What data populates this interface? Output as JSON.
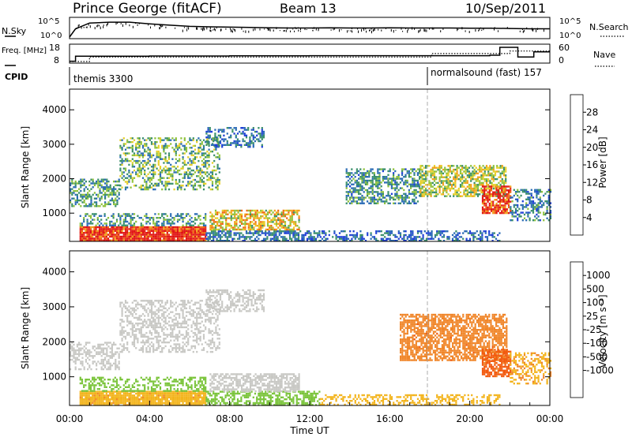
{
  "header": {
    "station": "Prince George (fitACF)",
    "beam": "Beam 13",
    "date": "10/Sep/2011"
  },
  "colors": {
    "power": [
      "#1f3fd6",
      "#2a6bb5",
      "#3a8f6a",
      "#8fc23c",
      "#e6d02a",
      "#f2a019",
      "#f06a12",
      "#e8301a",
      "#e01414"
    ],
    "velocity": [
      "#e01414",
      "#f25a0f",
      "#f0862a",
      "#f3b41c",
      "#c8c8c4",
      "#c8c8c4",
      "#7ac43a",
      "#2f8e5a",
      "#2852b0",
      "#1d2fc6"
    ],
    "ground_scatter": "#c8c8c4"
  },
  "chart_data": [
    {
      "type": "line",
      "panel": "noise",
      "ylabel_left": "N.Sky",
      "ylabel_right": "N.Search",
      "yticks": [
        "10^5",
        "10^0"
      ],
      "x": [
        0,
        0.3,
        0.5,
        1,
        2,
        3,
        4,
        5,
        6,
        7,
        8,
        9,
        10,
        11,
        12,
        13,
        14,
        15,
        16,
        17,
        18,
        19,
        20,
        21,
        22,
        23,
        24
      ],
      "series": [
        {
          "name": "N.Sky",
          "values": [
            0.0,
            0.5,
            0.6,
            0.85,
            0.9,
            0.9,
            0.8,
            0.72,
            0.65,
            0.62,
            0.6,
            0.58,
            0.56,
            0.55,
            0.55,
            0.56,
            0.55,
            0.55,
            0.56,
            0.55,
            0.55,
            0.55,
            0.54,
            0.54,
            0.52,
            0.5,
            0.5
          ]
        }
      ]
    },
    {
      "type": "line",
      "panel": "frequency",
      "ylabel_left": "Freq. [MHz]",
      "ylabel_right": "Nave",
      "yticks_left": [
        "18",
        "8"
      ],
      "yticks_right": [
        "60",
        "0"
      ],
      "series": [
        {
          "name": "Freq.",
          "x": [
            0,
            0.3,
            1,
            4,
            8,
            12,
            16,
            18,
            20,
            21,
            21.5,
            22.2,
            22.4,
            23,
            23.2,
            24
          ],
          "values": [
            8.2,
            11.5,
            11.6,
            11.7,
            11.8,
            11.9,
            11.9,
            11.9,
            11.9,
            12.2,
            17.5,
            17.5,
            11.0,
            11.0,
            14.5,
            14.5
          ]
        },
        {
          "name": "Nave",
          "x": [
            0,
            1,
            17.9,
            18.1,
            21.5,
            22,
            24
          ],
          "values": [
            0,
            18,
            18,
            32,
            32,
            42,
            42
          ]
        }
      ]
    },
    {
      "type": "table",
      "panel": "cpid",
      "label": "CPID",
      "segments": [
        {
          "label": "themis 3300",
          "start": 0
        },
        {
          "label": "normalsound (fast) 157",
          "start": 18.0
        }
      ]
    },
    {
      "type": "heatmap",
      "panel": "power",
      "ylabel": "Slant Range [km]",
      "colorbar_label": "Power [dB]",
      "colorbar_ticks": [
        4,
        8,
        12,
        16,
        20,
        24,
        28
      ],
      "vmin": 0,
      "vmax": 32,
      "xlim": [
        0,
        24
      ],
      "ylim": [
        180,
        4600
      ],
      "yticks": [
        1000,
        2000,
        3000,
        4000
      ],
      "regions": [
        {
          "t": [
            0.5,
            6.8
          ],
          "r": [
            200,
            620
          ],
          "v": 29,
          "density": 0.95
        },
        {
          "t": [
            0.5,
            6.8
          ],
          "r": [
            620,
            1000
          ],
          "v": 9,
          "density": 0.45
        },
        {
          "t": [
            6.8,
            12.5
          ],
          "r": [
            200,
            500
          ],
          "v": 6,
          "density": 0.6
        },
        {
          "t": [
            12.5,
            21.5
          ],
          "r": [
            200,
            500
          ],
          "v": 5,
          "density": 0.45
        },
        {
          "t": [
            7.0,
            11.5
          ],
          "r": [
            500,
            1100
          ],
          "v": 17,
          "density": 0.65
        },
        {
          "t": [
            0.0,
            2.5
          ],
          "r": [
            1200,
            2000
          ],
          "v": 9,
          "density": 0.55
        },
        {
          "t": [
            2.5,
            7.5
          ],
          "r": [
            1700,
            3200
          ],
          "v": 11,
          "density": 0.45
        },
        {
          "t": [
            6.8,
            9.7
          ],
          "r": [
            2900,
            3500
          ],
          "v": 6,
          "density": 0.5
        },
        {
          "t": [
            13.8,
            17.5
          ],
          "r": [
            1300,
            2300
          ],
          "v": 8,
          "density": 0.5
        },
        {
          "t": [
            17.5,
            21.8
          ],
          "r": [
            1500,
            2400
          ],
          "v": 14,
          "density": 0.65
        },
        {
          "t": [
            20.6,
            22.0
          ],
          "r": [
            1000,
            1800
          ],
          "v": 27,
          "density": 0.75
        },
        {
          "t": [
            22.0,
            24.0
          ],
          "r": [
            800,
            1700
          ],
          "v": 7,
          "density": 0.45
        }
      ]
    },
    {
      "type": "heatmap",
      "panel": "velocity",
      "ylabel": "Slant Range [km]",
      "xlabel": "Time UT",
      "colorbar_label": "Velocity [m s⁻¹]",
      "colorbar_ticks": [
        1000,
        500,
        100,
        25,
        -25,
        -100,
        -500,
        -1000
      ],
      "xlim": [
        0,
        24
      ],
      "ylim": [
        180,
        4600
      ],
      "xticks": [
        "00:00",
        "04:00",
        "08:00",
        "12:00",
        "16:00",
        "20:00",
        "00:00"
      ],
      "yticks": [
        1000,
        2000,
        3000,
        4000
      ],
      "regions": [
        {
          "t": [
            0.5,
            6.8
          ],
          "r": [
            200,
            600
          ],
          "v": -80,
          "density": 0.95
        },
        {
          "t": [
            0.5,
            6.8
          ],
          "r": [
            600,
            1000
          ],
          "v": 60,
          "density": 0.45
        },
        {
          "t": [
            6.8,
            12.5
          ],
          "r": [
            200,
            600
          ],
          "v": 60,
          "density": 0.6
        },
        {
          "t": [
            7.0,
            11.5
          ],
          "r": [
            600,
            1100
          ],
          "v": 0,
          "density": 0.65
        },
        {
          "t": [
            12.5,
            21.5
          ],
          "r": [
            200,
            500
          ],
          "v": -60,
          "density": 0.4
        },
        {
          "t": [
            0.0,
            2.5
          ],
          "r": [
            1200,
            2000
          ],
          "v": 0,
          "density": 0.5
        },
        {
          "t": [
            2.5,
            7.5
          ],
          "r": [
            1700,
            3200
          ],
          "v": 0,
          "density": 0.45
        },
        {
          "t": [
            6.8,
            9.7
          ],
          "r": [
            2900,
            3500
          ],
          "v": 0,
          "density": 0.5
        },
        {
          "t": [
            16.5,
            21.8
          ],
          "r": [
            1500,
            2800
          ],
          "v": -400,
          "density": 0.7
        },
        {
          "t": [
            20.6,
            22.0
          ],
          "r": [
            1000,
            1800
          ],
          "v": -600,
          "density": 0.75
        },
        {
          "t": [
            22.0,
            24.0
          ],
          "r": [
            800,
            1700
          ],
          "v": -90,
          "density": 0.45
        }
      ]
    }
  ]
}
